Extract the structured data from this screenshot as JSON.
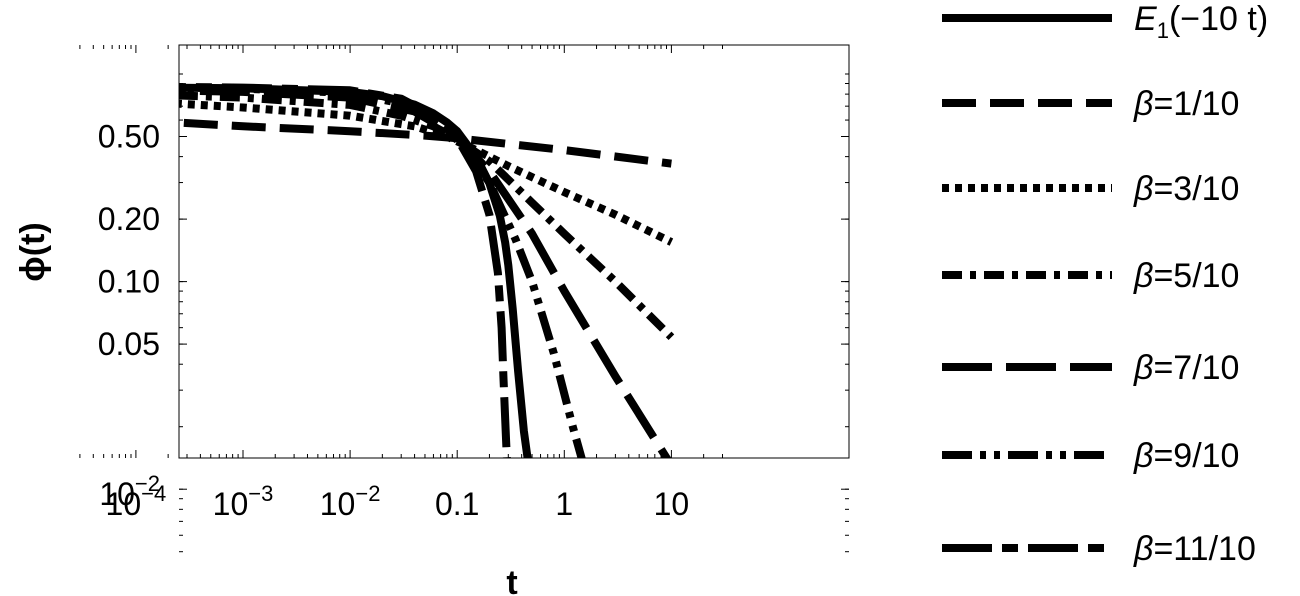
{
  "chart_data": {
    "type": "line",
    "title": "",
    "xlabel": "t",
    "ylabel": "ϕ(t)",
    "x_scale": "log",
    "y_scale": "log",
    "xlim": [
      3e-05,
      40
    ],
    "ylim": [
      0.004,
      1.3
    ],
    "grid": false,
    "legend_position": "right",
    "x_ticks": [
      {
        "value": 0.0001,
        "base": "10",
        "exp": "−4"
      },
      {
        "value": 0.001,
        "base": "10",
        "exp": "−3"
      },
      {
        "value": 0.01,
        "base": "10",
        "exp": "−2"
      },
      {
        "value": 0.1,
        "label": "0.1"
      },
      {
        "value": 1,
        "label": "1"
      },
      {
        "value": 10,
        "label": "10"
      }
    ],
    "y_ticks": [
      {
        "value": 0.5,
        "label": "0.50"
      },
      {
        "value": 0.2,
        "label": "0.20"
      },
      {
        "value": 0.1,
        "label": "0.10"
      },
      {
        "value": 0.05,
        "label": "0.05"
      },
      {
        "value": 0.01,
        "base": "10",
        "exp": "−2"
      }
    ],
    "series": [
      {
        "key": "e1",
        "legend": {
          "main": "E",
          "sub": "1",
          "rest": "(−10 t)",
          "italic_main": true
        },
        "dash": "none",
        "linecap": "butt",
        "points": [
          [
            0.0001,
            0.863
          ],
          [
            0.001,
            0.853
          ],
          [
            0.01,
            0.82
          ],
          [
            0.02,
            0.783
          ],
          [
            0.04,
            0.712
          ],
          [
            0.06,
            0.646
          ],
          [
            0.08,
            0.585
          ],
          [
            0.1,
            0.53
          ],
          [
            0.15,
            0.399
          ],
          [
            0.2,
            0.298
          ],
          [
            0.25,
            0.208
          ],
          [
            0.28,
            0.155
          ],
          [
            0.3,
            0.12
          ],
          [
            0.33,
            0.074
          ],
          [
            0.37,
            0.037
          ],
          [
            0.42,
            0.019
          ],
          [
            0.5,
            0.0098
          ]
        ]
      },
      {
        "key": "b01",
        "legend": {
          "main": "β",
          "rest": "=1/10",
          "italic_main": true
        },
        "dash": "34 14",
        "linecap": "butt",
        "points": [
          [
            0.0001,
            0.6
          ],
          [
            0.001,
            0.56
          ],
          [
            0.01,
            0.53
          ],
          [
            0.05,
            0.505
          ],
          [
            0.08,
            0.495
          ],
          [
            0.1,
            0.49
          ],
          [
            1,
            0.43
          ],
          [
            10,
            0.37
          ]
        ]
      },
      {
        "key": "b03",
        "legend": {
          "main": "β",
          "rest": "=3/10",
          "italic_main": true
        },
        "dash": "7 6",
        "linecap": "butt",
        "points": [
          [
            0.0001,
            0.74
          ],
          [
            0.001,
            0.69
          ],
          [
            0.01,
            0.63
          ],
          [
            0.04,
            0.56
          ],
          [
            0.08,
            0.5
          ],
          [
            0.15,
            0.43
          ],
          [
            0.3,
            0.36
          ],
          [
            1,
            0.27
          ],
          [
            3,
            0.21
          ],
          [
            10,
            0.155
          ]
        ]
      },
      {
        "key": "b05",
        "legend": {
          "main": "β",
          "rest": "=5/10",
          "italic_main": true
        },
        "dash": "20 8 6 8",
        "linecap": "butt",
        "points": [
          [
            0.0001,
            0.8
          ],
          [
            0.001,
            0.77
          ],
          [
            0.01,
            0.71
          ],
          [
            0.03,
            0.63
          ],
          [
            0.06,
            0.56
          ],
          [
            0.09,
            0.5
          ],
          [
            0.2,
            0.38
          ],
          [
            0.5,
            0.24
          ],
          [
            1,
            0.17
          ],
          [
            3,
            0.1
          ],
          [
            10,
            0.054
          ]
        ]
      },
      {
        "key": "b07",
        "legend": {
          "main": "β",
          "rest": "=7/10",
          "italic_main": true
        },
        "dash": "50 14",
        "linecap": "butt",
        "points": [
          [
            0.0001,
            0.84
          ],
          [
            0.001,
            0.82
          ],
          [
            0.01,
            0.77
          ],
          [
            0.04,
            0.66
          ],
          [
            0.1,
            0.5
          ],
          [
            0.2,
            0.34
          ],
          [
            0.5,
            0.17
          ],
          [
            1,
            0.09
          ],
          [
            3,
            0.035
          ],
          [
            10,
            0.013
          ]
        ]
      },
      {
        "key": "b09",
        "legend": {
          "main": "β",
          "rest": "=9/10",
          "italic_main": true
        },
        "dash": "30 8 6 8 6 8",
        "linecap": "butt",
        "points": [
          [
            0.0001,
            0.86
          ],
          [
            0.001,
            0.85
          ],
          [
            0.01,
            0.81
          ],
          [
            0.04,
            0.7
          ],
          [
            0.1,
            0.5
          ],
          [
            0.2,
            0.3
          ],
          [
            0.35,
            0.16
          ],
          [
            0.5,
            0.1
          ],
          [
            0.8,
            0.045
          ],
          [
            1.2,
            0.02
          ],
          [
            1.8,
            0.0095
          ]
        ]
      },
      {
        "key": "b11",
        "legend": {
          "main": "β",
          "rest": "=11/10",
          "italic_main": true
        },
        "dash": "50 10 16 10",
        "linecap": "butt",
        "points": [
          [
            0.0001,
            0.87
          ],
          [
            0.001,
            0.86
          ],
          [
            0.01,
            0.835
          ],
          [
            0.03,
            0.76
          ],
          [
            0.06,
            0.63
          ],
          [
            0.1,
            0.49
          ],
          [
            0.15,
            0.34
          ],
          [
            0.2,
            0.21
          ],
          [
            0.24,
            0.11
          ],
          [
            0.26,
            0.06
          ],
          [
            0.27,
            0.035
          ],
          [
            0.285,
            0.018
          ],
          [
            0.3,
            0.0098
          ]
        ]
      }
    ],
    "colors": {
      "line": "#000000",
      "frame": "#000000",
      "background": "#ffffff"
    }
  }
}
